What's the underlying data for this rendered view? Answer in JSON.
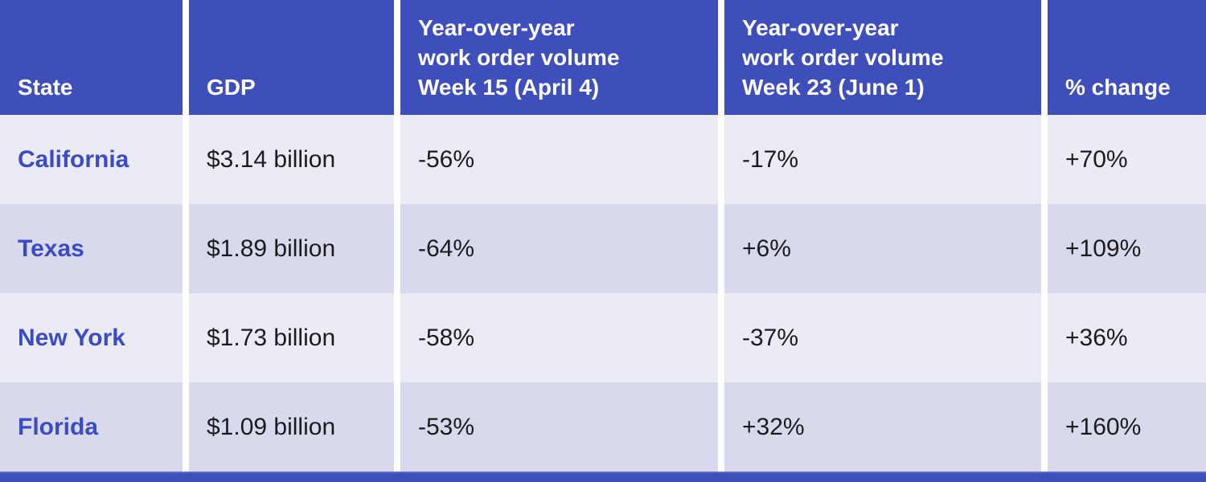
{
  "colors": {
    "header_bg": "#3e4ebb",
    "header_text": "#ffffff",
    "row_light_bg": "#ebebf6",
    "row_dark_bg": "#d9d9ee",
    "state_link": "#3b4cc3",
    "body_text": "#1c1c1c",
    "footer_bar": "#3e4ebb"
  },
  "table": {
    "columns": [
      {
        "label": "State",
        "lines": [
          "State"
        ]
      },
      {
        "label": "GDP",
        "lines": [
          "GDP"
        ]
      },
      {
        "label": "Year-over-year work order volume Week 15 (April 4)",
        "lines": [
          "Year-over-year",
          "work order volume",
          "Week 15 (April 4)"
        ]
      },
      {
        "label": "Year-over-year work order volume Week 23 (June 1)",
        "lines": [
          "Year-over-year",
          "work order volume",
          "Week 23 (June 1)"
        ]
      },
      {
        "label": "% change",
        "lines": [
          "% change"
        ]
      }
    ],
    "rows": [
      {
        "state": "California",
        "gdp": "$3.14 billion",
        "week15": "-56%",
        "week23": "-17%",
        "pct_change": "+70%"
      },
      {
        "state": "Texas",
        "gdp": "$1.89 billion",
        "week15": "-64%",
        "week23": "+6%",
        "pct_change": "+109%"
      },
      {
        "state": "New York",
        "gdp": "$1.73 billion",
        "week15": "-58%",
        "week23": "-37%",
        "pct_change": "+36%"
      },
      {
        "state": "Florida",
        "gdp": "$1.09 billion",
        "week15": "-53%",
        "week23": "+32%",
        "pct_change": "+160%"
      }
    ]
  },
  "chart_data": {
    "type": "table",
    "columns": [
      "State",
      "GDP",
      "Year-over-year work order volume Week 15 (April 4)",
      "Year-over-year work order volume Week 23 (June 1)",
      "% change"
    ],
    "rows": [
      [
        "California",
        "$3.14 billion",
        "-56%",
        "-17%",
        "+70%"
      ],
      [
        "Texas",
        "$1.89 billion",
        "-64%",
        "+6%",
        "+109%"
      ],
      [
        "New York",
        "$1.73 billion",
        "-58%",
        "-37%",
        "+36%"
      ],
      [
        "Florida",
        "$1.09 billion",
        "-53%",
        "+32%",
        "+160%"
      ]
    ]
  }
}
